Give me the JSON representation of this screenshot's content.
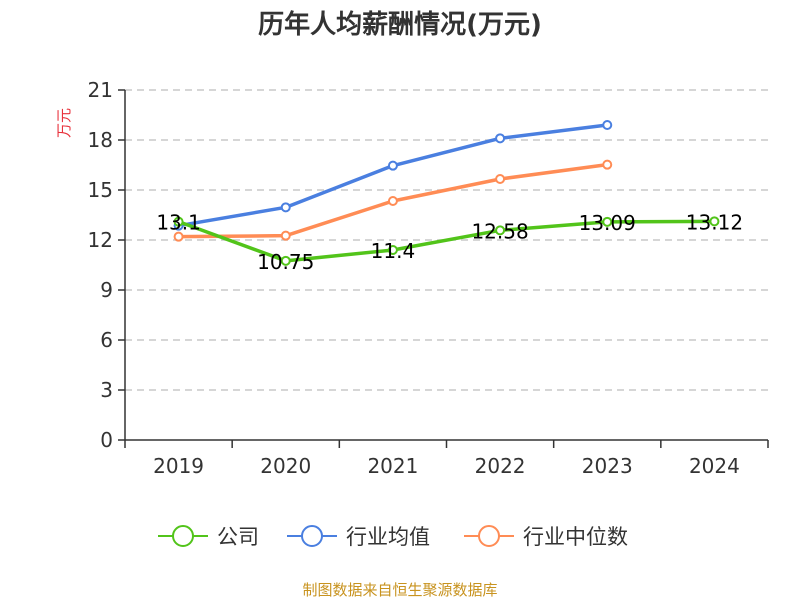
{
  "chart_data": {
    "type": "line",
    "title": "历年人均薪酬情况(万元)",
    "ylabel": "万元",
    "xlabel": "",
    "categories": [
      "2019",
      "2020",
      "2021",
      "2022",
      "2023",
      "2024"
    ],
    "ylim": [
      0,
      21
    ],
    "yticks": [
      0,
      3,
      6,
      9,
      12,
      15,
      18,
      21
    ],
    "grid": true,
    "legend_position": "bottom",
    "series": [
      {
        "name": "公司",
        "color": "#52c41a",
        "values": [
          13.1,
          10.75,
          11.4,
          12.58,
          13.09,
          13.12
        ],
        "labels": [
          "13.1",
          "10.75",
          "11.4",
          "12.58",
          "13.09",
          "13.12"
        ]
      },
      {
        "name": "行业均值",
        "color": "#4a7fe0",
        "values": [
          12.86,
          13.96,
          16.46,
          18.1,
          18.9,
          null
        ]
      },
      {
        "name": "行业中位数",
        "color": "#ff8c55",
        "values": [
          12.2,
          12.26,
          14.34,
          15.66,
          16.52,
          null
        ]
      }
    ],
    "source": "制图数据来自恒生聚源数据库"
  }
}
